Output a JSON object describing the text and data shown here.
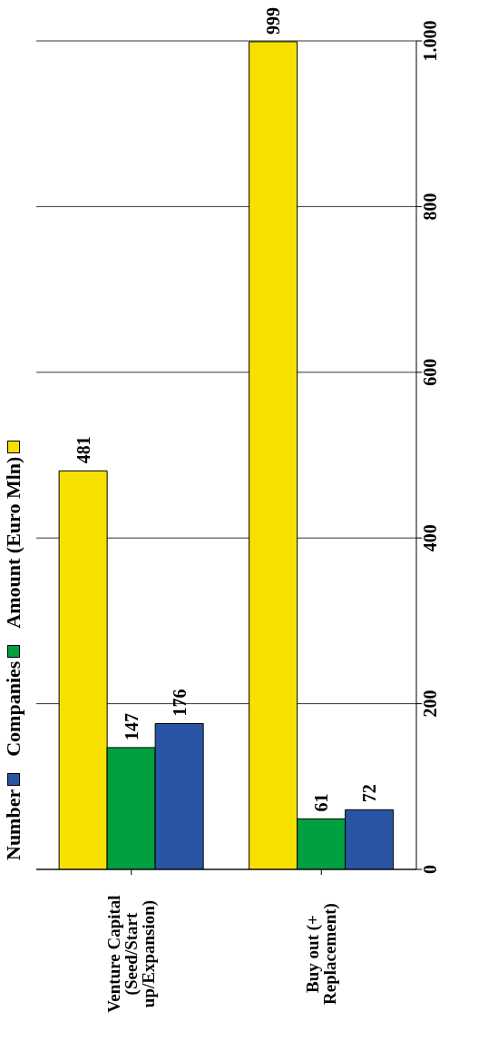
{
  "chart_data": {
    "type": "bar",
    "categories": [
      "Venture Capital (Seed/Start up/Expansion)",
      "Buy out (+ Replacement)"
    ],
    "series": [
      {
        "name": "Amount (Euro Mln)",
        "color": "#f5e000",
        "values": [
          481,
          999
        ]
      },
      {
        "name": "Companies",
        "color": "#00a040",
        "values": [
          147,
          61
        ]
      },
      {
        "name": "Number",
        "color": "#2a55a5",
        "values": [
          176,
          72
        ]
      }
    ],
    "ylim": [
      0,
      1000
    ],
    "yticks": [
      0,
      200,
      400,
      600,
      800,
      {
        "value": 1000,
        "label": "1.000"
      }
    ],
    "grid": "y",
    "legend": "left",
    "data_labels": true
  }
}
